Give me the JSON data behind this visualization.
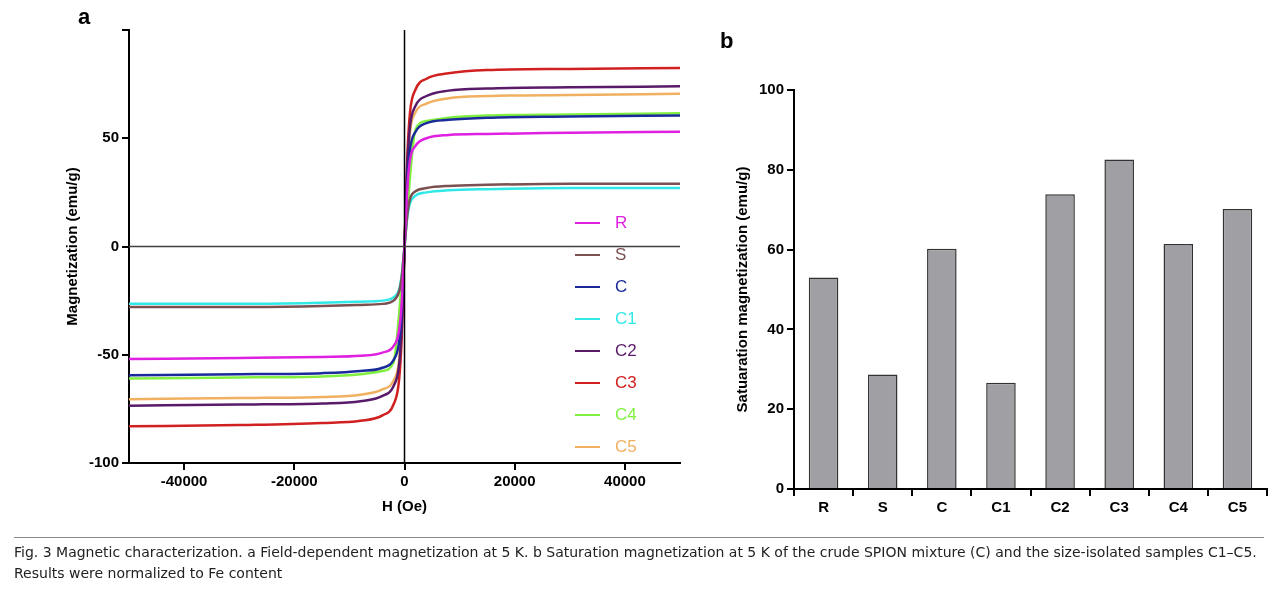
{
  "chart_data": [
    {
      "type": "line",
      "title": "a",
      "xlabel": "H (Oe)",
      "ylabel": "Magnetization (emu/g)",
      "xlim": [
        -50000,
        50000
      ],
      "xticks": [
        -40000,
        -20000,
        0,
        20000,
        40000
      ],
      "ylim": [
        -100,
        100
      ],
      "yticks": [
        -100,
        -50,
        0,
        50,
        {
          "value": 100,
          "label": null
        }
      ],
      "grid": false,
      "legend": "bottom right",
      "marker": "none",
      "line_style": "solid",
      "ref_lines": [
        {
          "axis": "x",
          "value": 0,
          "color": "#000000"
        },
        {
          "axis": "y",
          "value": 0,
          "color": "#404040"
        }
      ],
      "x": [
        -50000,
        -30000,
        -15000,
        -8000,
        -4000,
        -2000,
        -1000,
        -500,
        0,
        500,
        1000,
        2000,
        4000,
        8000,
        15000,
        30000,
        50000
      ],
      "series": [
        {
          "name": "R",
          "color": "#e020e0",
          "values": [
            -52,
            -51.5,
            -51,
            -50.5,
            -49,
            -46,
            -39,
            -26,
            0,
            26.5,
            40,
            46.5,
            50,
            51.5,
            52,
            52.5,
            53
          ]
        },
        {
          "name": "S",
          "color": "#7a5050",
          "values": [
            -28,
            -28,
            -27.5,
            -27,
            -26.5,
            -25,
            -21,
            -14,
            0,
            14.5,
            22,
            25.5,
            27,
            28,
            28.5,
            29,
            29
          ]
        },
        {
          "name": "C",
          "color": "#1a2a9a",
          "values": [
            -59.5,
            -59,
            -58.5,
            -57.5,
            -56,
            -52.5,
            -44.5,
            -30,
            0,
            30,
            45,
            53,
            57,
            58.5,
            59.5,
            60,
            60.5
          ]
        },
        {
          "name": "C1",
          "color": "#30e8e8",
          "values": [
            -26.5,
            -26.5,
            -26,
            -25.5,
            -25,
            -23.5,
            -20,
            -13,
            0,
            13.5,
            20,
            23.5,
            25,
            26,
            26.5,
            27,
            27
          ]
        },
        {
          "name": "C2",
          "color": "#5a1a6a",
          "values": [
            -73.5,
            -73,
            -72.5,
            -71.5,
            -69,
            -64.5,
            -55,
            -37,
            0,
            37,
            55.5,
            65,
            69.5,
            72,
            73,
            73.5,
            74
          ]
        },
        {
          "name": "C3",
          "color": "#d02020",
          "values": [
            -83,
            -82.5,
            -81.5,
            -80.5,
            -78,
            -73,
            -62,
            -41.5,
            0,
            41,
            62,
            72.5,
            77.5,
            80,
            81.5,
            82,
            82.5
          ]
        },
        {
          "name": "C4",
          "color": "#80f040",
          "values": [
            -61,
            -60.5,
            -60,
            -59,
            -57.5,
            -53.5,
            null,
            null,
            0,
            null,
            null,
            54,
            58,
            59.5,
            60.5,
            61,
            61.5
          ]
        },
        {
          "name": "C5",
          "color": "#f0b060",
          "values": [
            -70.5,
            -70,
            -69.5,
            -68.5,
            -66,
            -62,
            -53,
            -35,
            0,
            35,
            53,
            62,
            66,
            68.5,
            69.5,
            70,
            70.5
          ]
        }
      ],
      "annotations": [
        "Fig. 3  Magnetic characterization. a Field-dependent magnetization at 5 K. b Saturation magnetization at 5 K of the crude SPION mixture (C) and the size-isolated samples C1–C5. Results were normalized to Fe content"
      ]
    },
    {
      "type": "bar",
      "title": "b",
      "ylabel": "Satuaration magnetization (emu/g)",
      "categories": [
        "R",
        "S",
        "C",
        "C1",
        "C2",
        "C3",
        "C4",
        "C5"
      ],
      "values": [
        53,
        28.7,
        60.2,
        26.6,
        73.9,
        82.6,
        61.4,
        70.2
      ],
      "color": "#a0a0a4",
      "ylim": [
        0,
        100
      ],
      "yticks": [
        0,
        20,
        40,
        60,
        80,
        100
      ],
      "grid": false,
      "legend": false
    }
  ]
}
